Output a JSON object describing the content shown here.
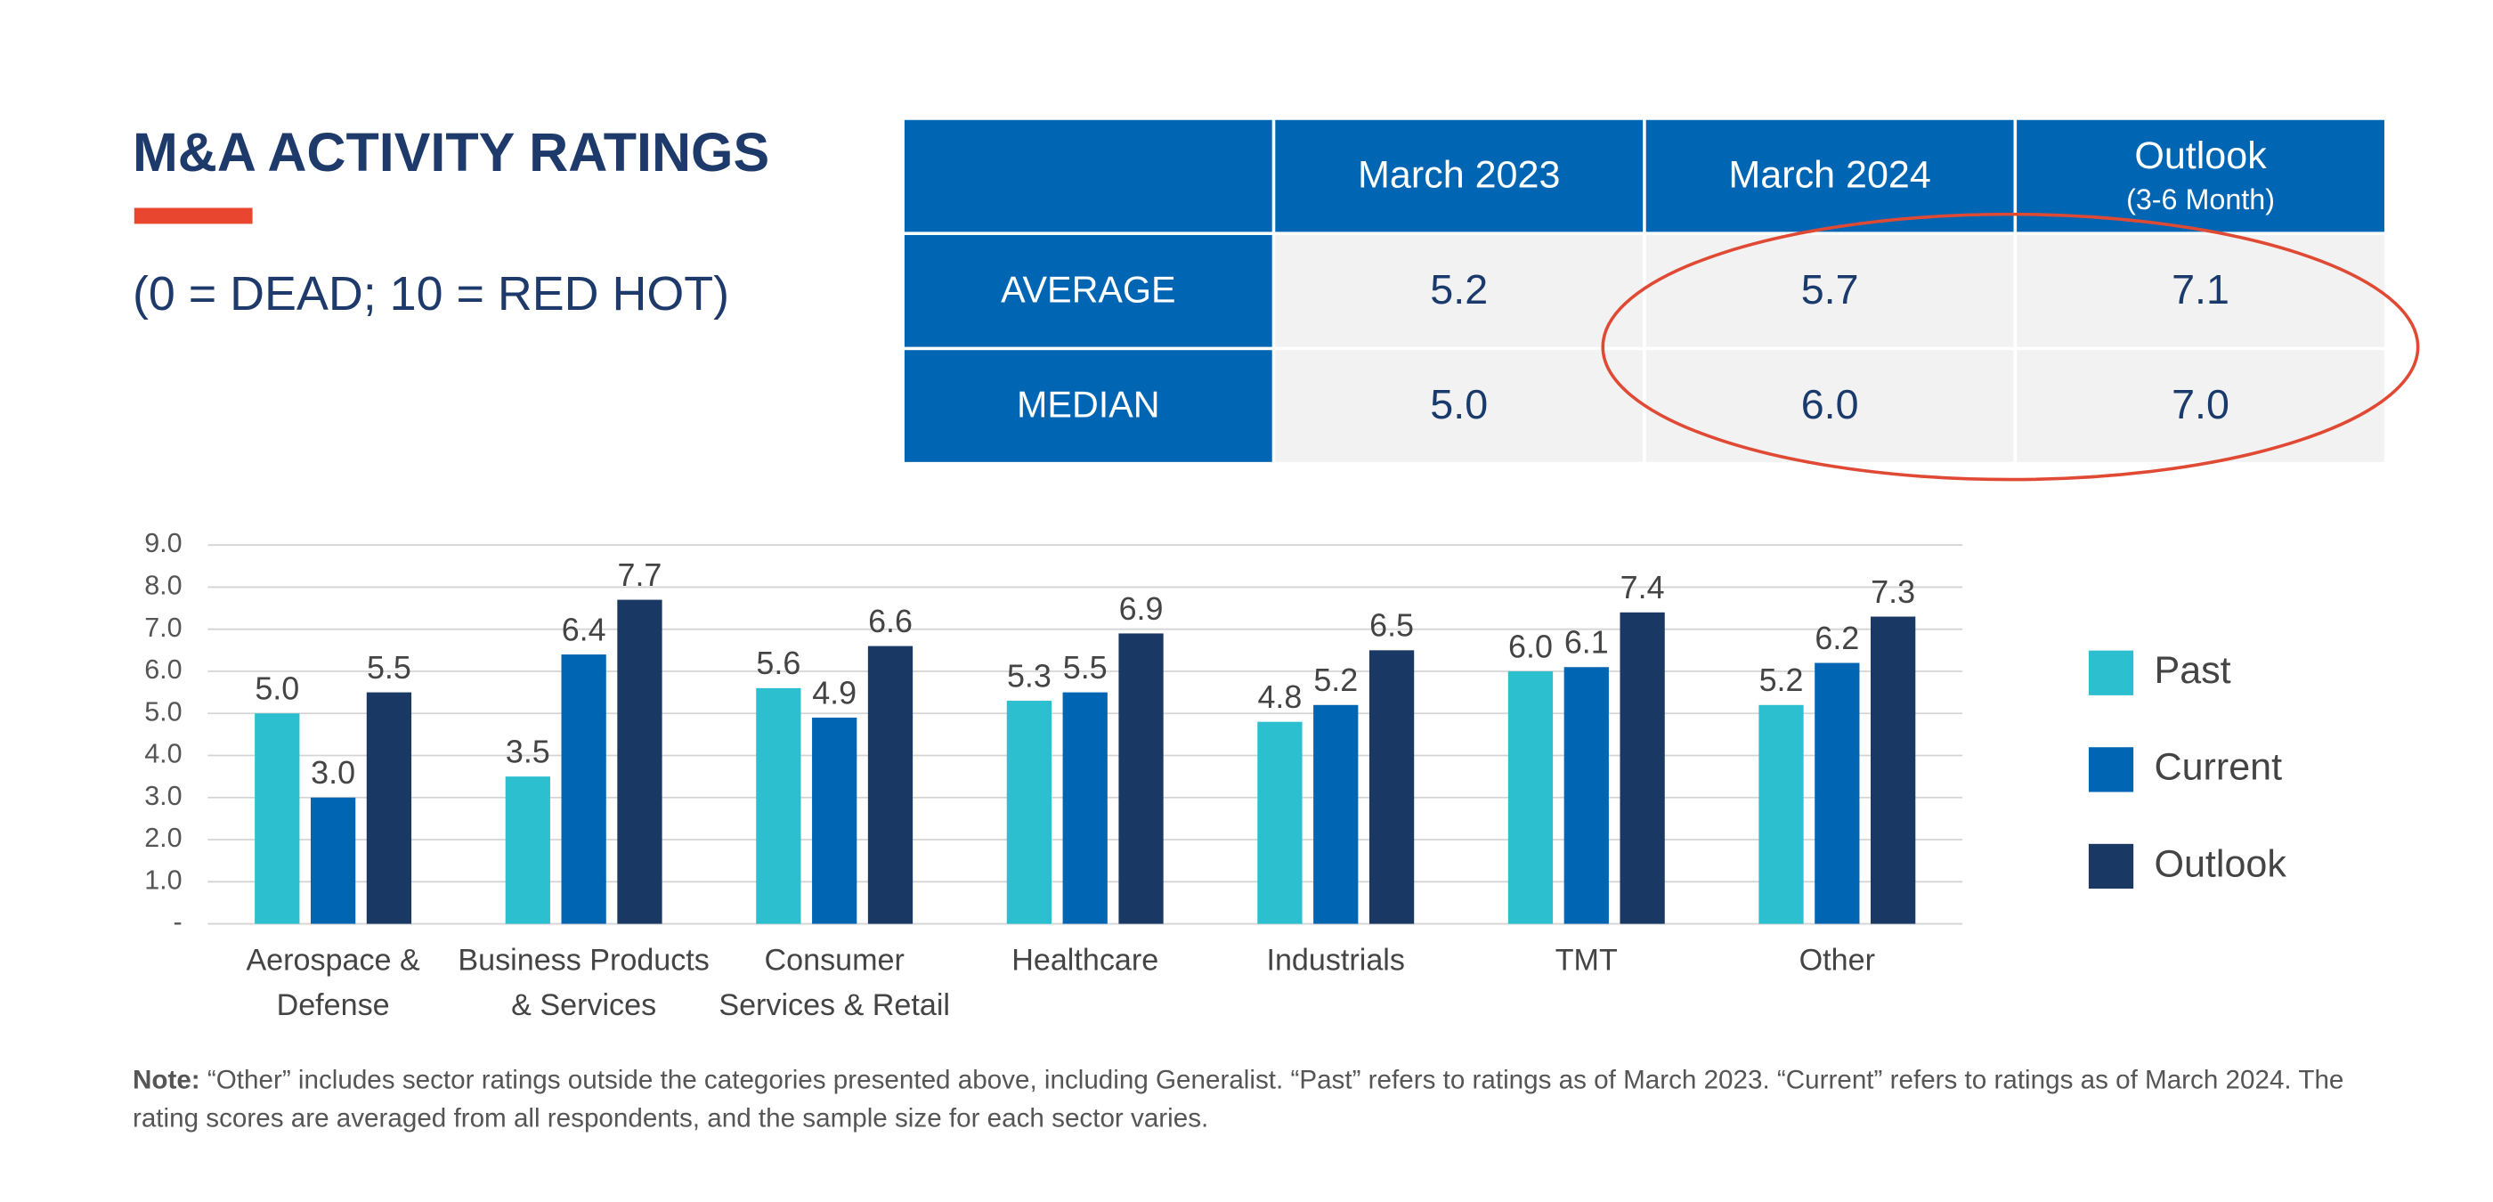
{
  "title": "M&A ACTIVITY RATINGS",
  "subtitle": "(0 = DEAD; 10 = RED HOT)",
  "table": {
    "columns": [
      "March 2023",
      "March 2024",
      "Outlook"
    ],
    "outlook_note": "(3-6 Month)",
    "rows": [
      {
        "label": "AVERAGE",
        "cells": [
          "5.2",
          "5.7",
          "7.1"
        ]
      },
      {
        "label": "MEDIAN",
        "cells": [
          "5.0",
          "6.0",
          "7.0"
        ]
      }
    ]
  },
  "chart_data": {
    "type": "bar",
    "categories": [
      "Aerospace & Defense",
      "Business Products & Services",
      "Consumer Services & Retail",
      "Healthcare",
      "Industrials",
      "TMT",
      "Other"
    ],
    "series": [
      {
        "name": "Past",
        "color": "#2bbfcf",
        "values": [
          5.0,
          3.5,
          5.6,
          5.3,
          4.8,
          6.0,
          5.2
        ],
        "value_labels": [
          "5.0",
          "3.5",
          "5.6",
          "5.3",
          "4.8",
          "6.0",
          "5.2"
        ]
      },
      {
        "name": "Current",
        "color": "#0066b3",
        "values": [
          3.0,
          6.4,
          4.9,
          5.5,
          5.2,
          6.1,
          6.2
        ],
        "value_labels": [
          "3.0",
          "6.4",
          "4.9",
          "5.5",
          "5.2",
          "6.1",
          "6.2"
        ]
      },
      {
        "name": "Outlook",
        "color": "#1a3864",
        "values": [
          5.5,
          7.7,
          6.6,
          6.9,
          6.5,
          7.4,
          7.3
        ],
        "value_labels": [
          "5.5",
          "7.7",
          "6.6",
          "6.9",
          "6.5",
          "7.4",
          "7.3"
        ]
      }
    ],
    "ylim": [
      0,
      9
    ],
    "yticks": [
      {
        "value": 0,
        "label": "-"
      },
      {
        "value": 1,
        "label": "1.0"
      },
      {
        "value": 2,
        "label": "2.0"
      },
      {
        "value": 3,
        "label": "3.0"
      },
      {
        "value": 4,
        "label": "4.0"
      },
      {
        "value": 5,
        "label": "5.0"
      },
      {
        "value": 6,
        "label": "6.0"
      },
      {
        "value": 7,
        "label": "7.0"
      },
      {
        "value": 8,
        "label": "8.0"
      },
      {
        "value": 9,
        "label": "9.0"
      }
    ],
    "grid": true,
    "legend": "right"
  },
  "note": {
    "label": "Note:",
    "text": "“Other” includes sector ratings outside the categories presented above, including Generalist. “Past” refers to ratings as of March 2023. “Current” refers to ratings as of March 2024. The rating scores are averaged from all respondents, and the sample size for each sector varies."
  }
}
